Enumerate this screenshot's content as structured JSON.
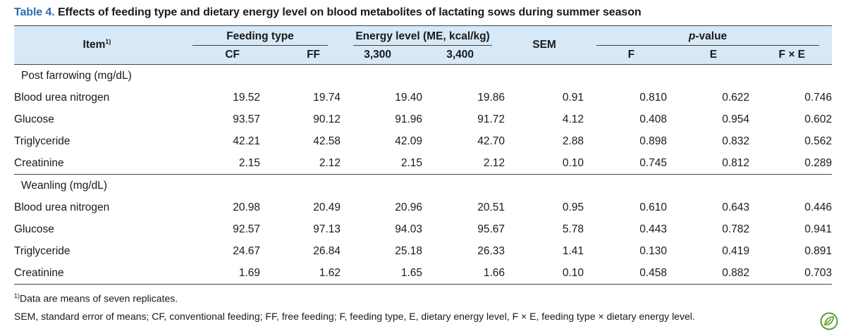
{
  "caption": {
    "label": "Table 4.",
    "text": "Effects of feeding type and dietary energy level on blood metabolites of lactating sows during summer season"
  },
  "header": {
    "item": "Item",
    "item_sup": "1)",
    "feeding_type": "Feeding type",
    "energy_level": "Energy level (ME, kcal/kg)",
    "sem": "SEM",
    "p_value_italic": "p",
    "p_value_rest": "-value",
    "cols": [
      "CF",
      "FF",
      "3,300",
      "3,400",
      "F",
      "E",
      "F × E"
    ]
  },
  "sections": [
    {
      "title": "Post farrowing (mg/dL)",
      "rows": [
        {
          "item": "Blood urea nitrogen",
          "values": [
            "19.52",
            "19.74",
            "19.40",
            "19.86",
            "0.91",
            "0.810",
            "0.622",
            "0.746"
          ]
        },
        {
          "item": "Glucose",
          "values": [
            "93.57",
            "90.12",
            "91.96",
            "91.72",
            "4.12",
            "0.408",
            "0.954",
            "0.602"
          ]
        },
        {
          "item": "Triglyceride",
          "values": [
            "42.21",
            "42.58",
            "42.09",
            "42.70",
            "2.88",
            "0.898",
            "0.832",
            "0.562"
          ]
        },
        {
          "item": "Creatinine",
          "values": [
            "2.15",
            "2.12",
            "2.15",
            "2.12",
            "0.10",
            "0.745",
            "0.812",
            "0.289"
          ]
        }
      ]
    },
    {
      "title": "Weanling (mg/dL)",
      "rows": [
        {
          "item": "Blood urea nitrogen",
          "values": [
            "20.98",
            "20.49",
            "20.96",
            "20.51",
            "0.95",
            "0.610",
            "0.643",
            "0.446"
          ]
        },
        {
          "item": "Glucose",
          "values": [
            "92.57",
            "97.13",
            "94.03",
            "95.67",
            "5.78",
            "0.443",
            "0.782",
            "0.941"
          ]
        },
        {
          "item": "Triglyceride",
          "values": [
            "24.67",
            "26.84",
            "25.18",
            "26.33",
            "1.41",
            "0.130",
            "0.419",
            "0.891"
          ]
        },
        {
          "item": "Creatinine",
          "values": [
            "1.69",
            "1.62",
            "1.65",
            "1.66",
            "0.10",
            "0.458",
            "0.882",
            "0.703"
          ]
        }
      ]
    }
  ],
  "footnotes": {
    "fn1_sup": "1)",
    "fn1_text": "Data are means of seven replicates.",
    "fn2": "SEM, standard error of means; CF, conventional feeding; FF, free feeding; F, feeding type, E, dietary energy level, F × E, feeding type × dietary energy level."
  },
  "colors": {
    "caption_label": "#2b6cb0",
    "header_bg": "#d7e8f6",
    "rule": "#444444",
    "leaf_icon": "#5aa02c"
  },
  "icons": [
    "leaf-icon"
  ]
}
